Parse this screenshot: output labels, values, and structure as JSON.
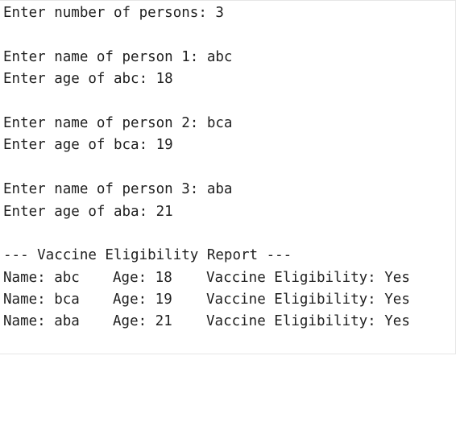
{
  "console": {
    "input_lines": [
      "Enter number of persons: 3",
      "",
      "Enter name of person 1: abc",
      "Enter age of abc: 18",
      "",
      "Enter name of person 2: bca",
      "Enter age of bca: 19",
      "",
      "Enter name of person 3: aba",
      "Enter age of aba: 21",
      ""
    ],
    "report_header": "--- Vaccine Eligibility Report ---",
    "report_rows": [
      {
        "name": "Name: abc",
        "age": "Age: 18",
        "eligibility": "Vaccine Eligibility: Yes"
      },
      {
        "name": "Name: bca",
        "age": "Age: 19",
        "eligibility": "Vaccine Eligibility: Yes"
      },
      {
        "name": "Name: aba",
        "age": "Age: 21",
        "eligibility": "Vaccine Eligibility: Yes"
      }
    ]
  }
}
